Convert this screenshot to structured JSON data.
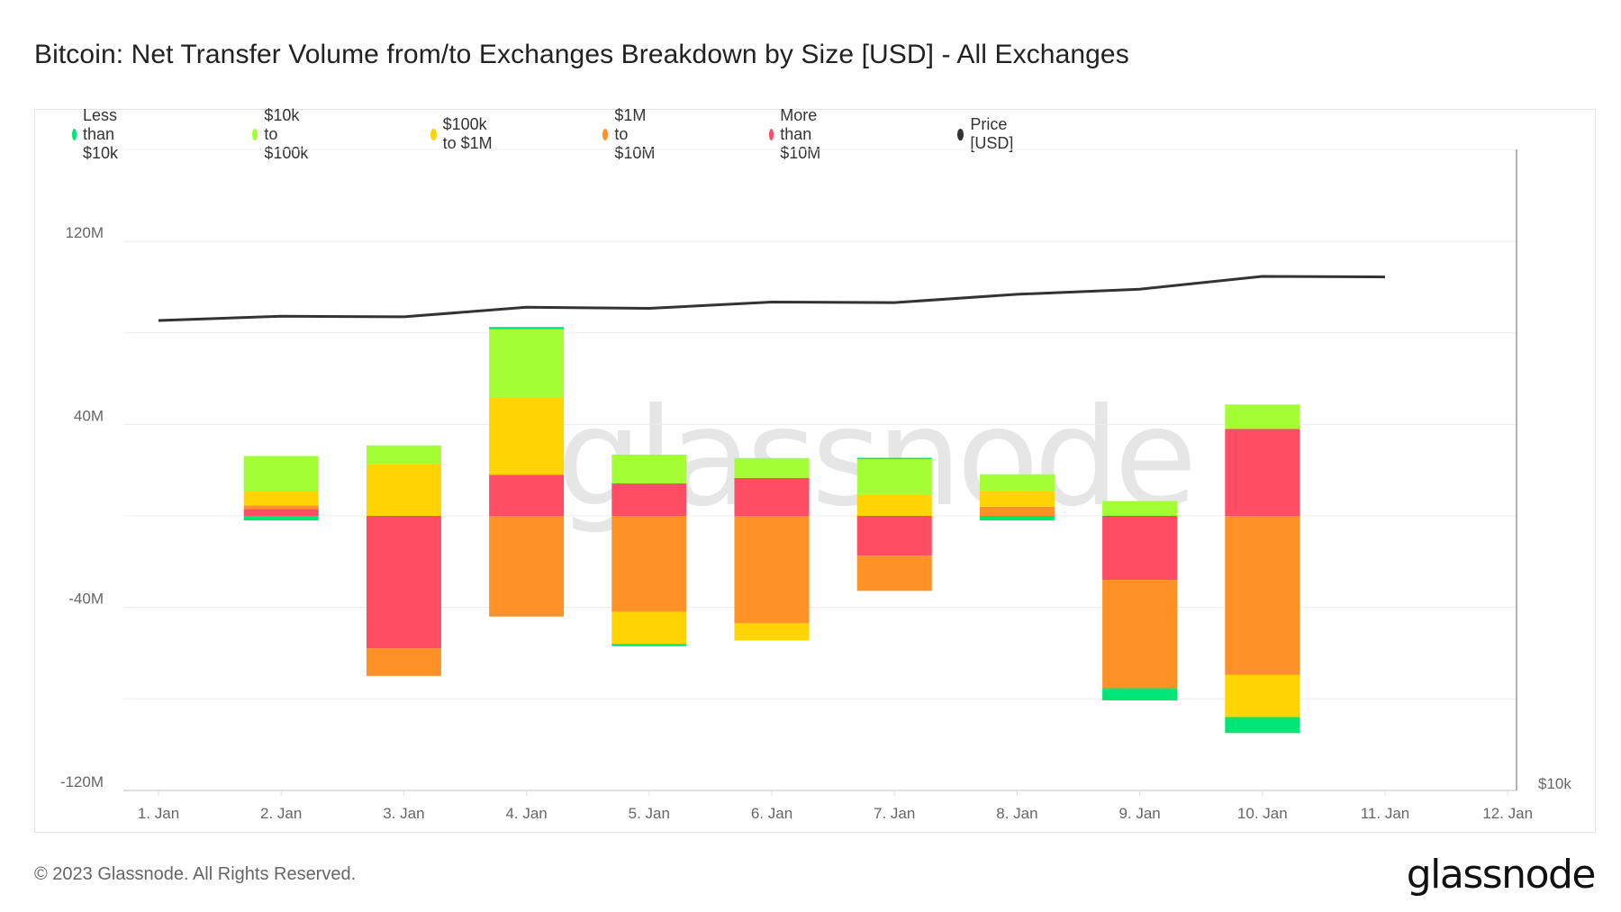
{
  "title": "Bitcoin: Net Transfer Volume from/to Exchanges Breakdown by Size [USD] - All Exchanges",
  "legend": [
    {
      "label": "Less than $10k",
      "color": "#00e676"
    },
    {
      "label": "$10k to $100k",
      "color": "#a3ff33"
    },
    {
      "label": "$100k to $1M",
      "color": "#ffd400"
    },
    {
      "label": "$1M to $10M",
      "color": "#ff9126"
    },
    {
      "label": "More than $10M",
      "color": "#ff4d63"
    },
    {
      "label": "Price [USD]",
      "color": "#333333"
    }
  ],
  "watermark": "glassnode",
  "footer": {
    "copyright": "© 2023 Glassnode. All Rights Reserved.",
    "logo": "glassnode"
  },
  "chart_data": {
    "type": "bar",
    "stacked": true,
    "title": "Bitcoin: Net Transfer Volume from/to Exchanges Breakdown by Size [USD] - All Exchanges",
    "xlabel": "",
    "ylabel": "",
    "categories": [
      "1. Jan",
      "2. Jan",
      "3. Jan",
      "4. Jan",
      "5. Jan",
      "6. Jan",
      "7. Jan",
      "8. Jan",
      "9. Jan",
      "10. Jan",
      "11. Jan",
      "12. Jan"
    ],
    "y_ticks": [
      "120M",
      "40M",
      "-40M",
      "-120M"
    ],
    "y_tick_values": [
      120,
      40,
      -40,
      -120
    ],
    "y_gridlines": [
      120,
      80,
      40,
      0,
      -40,
      -80,
      -120
    ],
    "ylim": [
      -120,
      160
    ],
    "y_unit": "M USD",
    "right_axis": {
      "label": "$10k",
      "scale": "log"
    },
    "grid": true,
    "legend_position": "top-left",
    "series": [
      {
        "name": "Less than $10k",
        "color": "#00e676",
        "values": [
          null,
          -2.0,
          0,
          1.0,
          -1.0,
          0,
          0.5,
          -2.0,
          -5.3,
          -7.0,
          null,
          null
        ]
      },
      {
        "name": "$10k to $100k",
        "color": "#a3ff33",
        "values": [
          null,
          15.4,
          8.3,
          29.6,
          12.6,
          8.7,
          15.8,
          7.5,
          6.5,
          10.7,
          null,
          null
        ]
      },
      {
        "name": "$100k to $1M",
        "color": "#ffd400",
        "values": [
          null,
          6.2,
          22.5,
          34.0,
          -14.0,
          -7.5,
          9.1,
          6.7,
          0,
          -18.4,
          null,
          null
        ]
      },
      {
        "name": "$1M to $10M",
        "color": "#ff9126",
        "values": [
          null,
          1.6,
          -12.0,
          -44.0,
          -42.0,
          -47.0,
          -15.4,
          4.0,
          -47.4,
          -69.6,
          null,
          null
        ]
      },
      {
        "name": "More than $10M",
        "color": "#ff4d63",
        "values": [
          null,
          3.0,
          -58.0,
          18.0,
          14.2,
          16.6,
          -17.4,
          0,
          -28.0,
          38.0,
          null,
          null
        ]
      }
    ],
    "line_series": {
      "name": "Price [USD]",
      "color": "#333333",
      "axis": "right",
      "values": [
        16600,
        16680,
        16670,
        16850,
        16830,
        16950,
        16940,
        17100,
        17200,
        17450,
        17440,
        null
      ]
    }
  }
}
